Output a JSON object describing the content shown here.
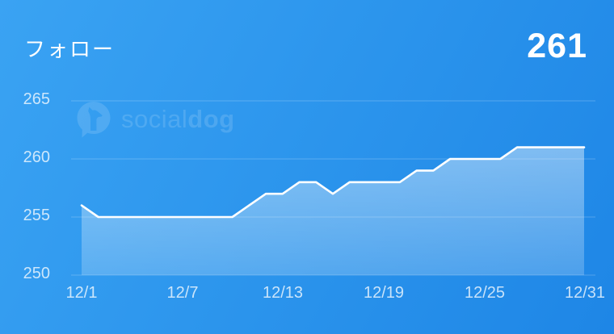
{
  "header": {
    "title": "フォロー",
    "current_value": "261"
  },
  "watermark": {
    "logo": "socialdog-speech-bubble-dog-icon",
    "brand_light": "social",
    "brand_bold": "dog"
  },
  "chart_data": {
    "type": "area",
    "title": "フォロー",
    "x": [
      "12/1",
      "12/2",
      "12/3",
      "12/4",
      "12/5",
      "12/6",
      "12/7",
      "12/8",
      "12/9",
      "12/10",
      "12/11",
      "12/12",
      "12/13",
      "12/14",
      "12/15",
      "12/16",
      "12/17",
      "12/18",
      "12/19",
      "12/20",
      "12/21",
      "12/22",
      "12/23",
      "12/24",
      "12/25",
      "12/26",
      "12/27",
      "12/28",
      "12/29",
      "12/30",
      "12/31"
    ],
    "values": [
      256,
      255,
      255,
      255,
      255,
      255,
      255,
      255,
      255,
      255,
      256,
      257,
      257,
      258,
      258,
      257,
      258,
      258,
      258,
      258,
      259,
      259,
      260,
      260,
      260,
      260,
      261,
      261,
      261,
      261,
      261
    ],
    "x_tick_labels": [
      "12/1",
      "12/7",
      "12/13",
      "12/19",
      "12/25",
      "12/31"
    ],
    "y_tick_labels": [
      "250",
      "255",
      "260",
      "265"
    ],
    "ylim": [
      250,
      265
    ],
    "xlabel": "",
    "ylabel": "",
    "grid": "horizontal only",
    "legend": "none",
    "line_color": "#ffffff",
    "fill_style": "translucent white gradient area",
    "background": "blue gradient"
  },
  "colors": {
    "bg_gradient_start": "#3aa3f3",
    "bg_gradient_end": "#1e86e6",
    "line": "#ffffff",
    "tick_label": "rgba(255,255,255,0.75)",
    "gridline": "rgba(255,255,255,0.22)",
    "watermark": "rgba(255,255,255,0.14)"
  }
}
